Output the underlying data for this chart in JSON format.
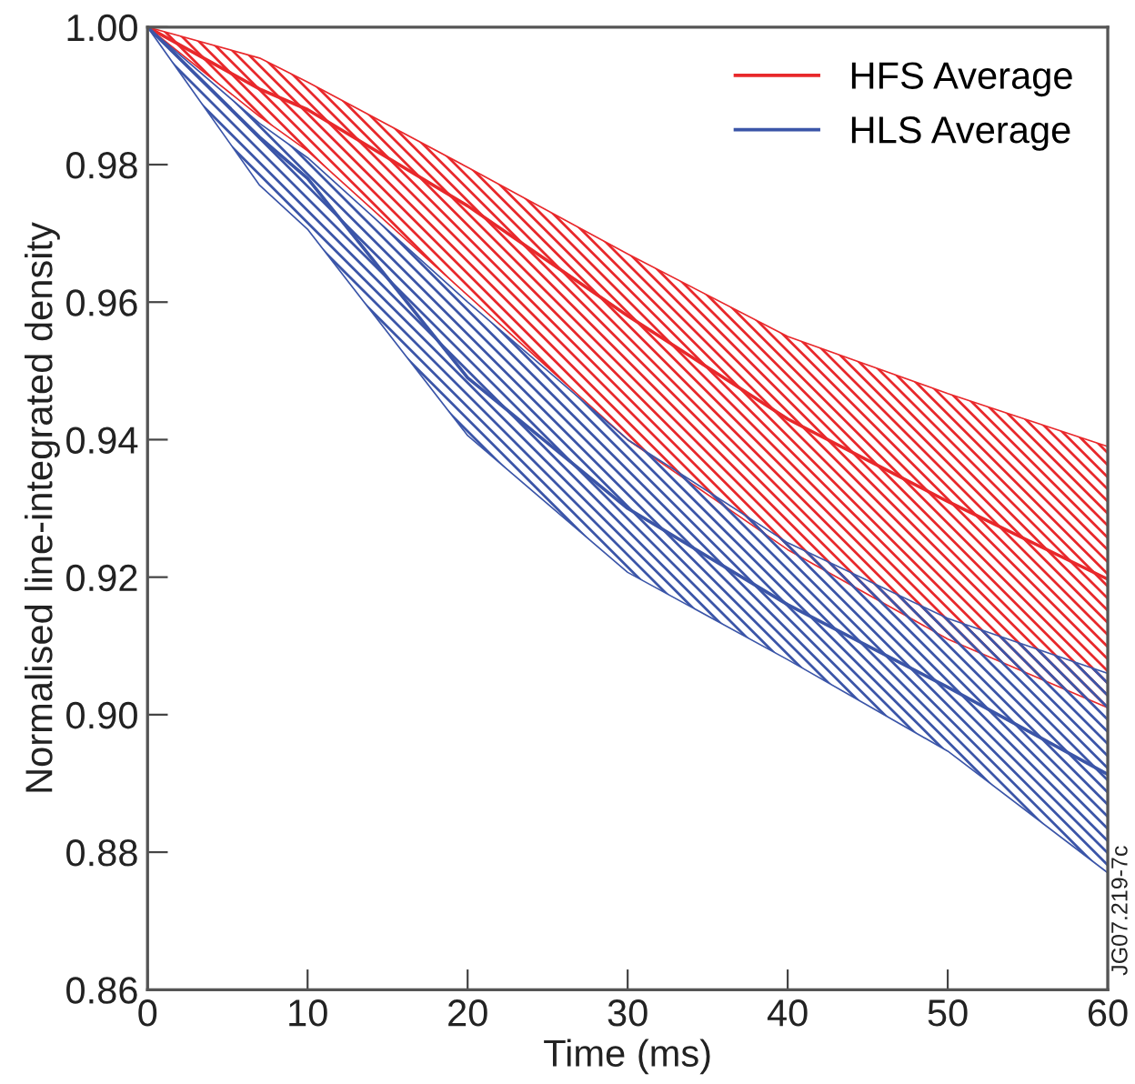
{
  "chart_data": {
    "type": "line",
    "xlabel": "Time (ms)",
    "ylabel": "Normalised line-integrated density",
    "xlim": [
      0,
      60
    ],
    "xticks": [
      0,
      10,
      20,
      30,
      40,
      50,
      60
    ],
    "ylim": [
      0.86,
      1.0
    ],
    "yticks": [
      {
        "value": 0.86,
        "label": "0.86"
      },
      {
        "value": 0.88,
        "label": "0.88"
      },
      {
        "value": 0.9,
        "label": "0.90"
      },
      {
        "value": 0.92,
        "label": "0.92"
      },
      {
        "value": 0.94,
        "label": "0.94"
      },
      {
        "value": 0.96,
        "label": "0.96"
      },
      {
        "value": 0.98,
        "label": "0.98"
      },
      {
        "value": 1.0,
        "label": "1.00"
      }
    ],
    "x": [
      0,
      7,
      10,
      20,
      30,
      40,
      50,
      60
    ],
    "series": [
      {
        "name": "HFS Average",
        "color": "#e8282b",
        "values": [
          1.0,
          0.991,
          0.988,
          0.974,
          0.958,
          0.943,
          0.931,
          0.9197
        ],
        "lower": [
          1.0,
          0.987,
          0.982,
          0.961,
          0.94,
          0.924,
          0.911,
          0.901
        ],
        "upper": [
          1.0,
          0.9955,
          0.992,
          0.9796,
          0.967,
          0.955,
          0.9467,
          0.939
        ]
      },
      {
        "name": "HLS Average",
        "color": "#3b55a8",
        "values": [
          1.0,
          0.984,
          0.978,
          0.949,
          0.93,
          0.916,
          0.904,
          0.8913
        ],
        "lower": [
          1.0,
          0.977,
          0.9706,
          0.9406,
          0.9207,
          0.908,
          0.8947,
          0.877
        ],
        "upper": [
          1.0,
          0.986,
          0.981,
          0.96,
          0.94,
          0.925,
          0.914,
          0.906
        ]
      }
    ],
    "legend": "top right",
    "grid": false,
    "line_style": "solid",
    "marker": "none",
    "annotations": [
      "JG07.219-7c"
    ]
  }
}
